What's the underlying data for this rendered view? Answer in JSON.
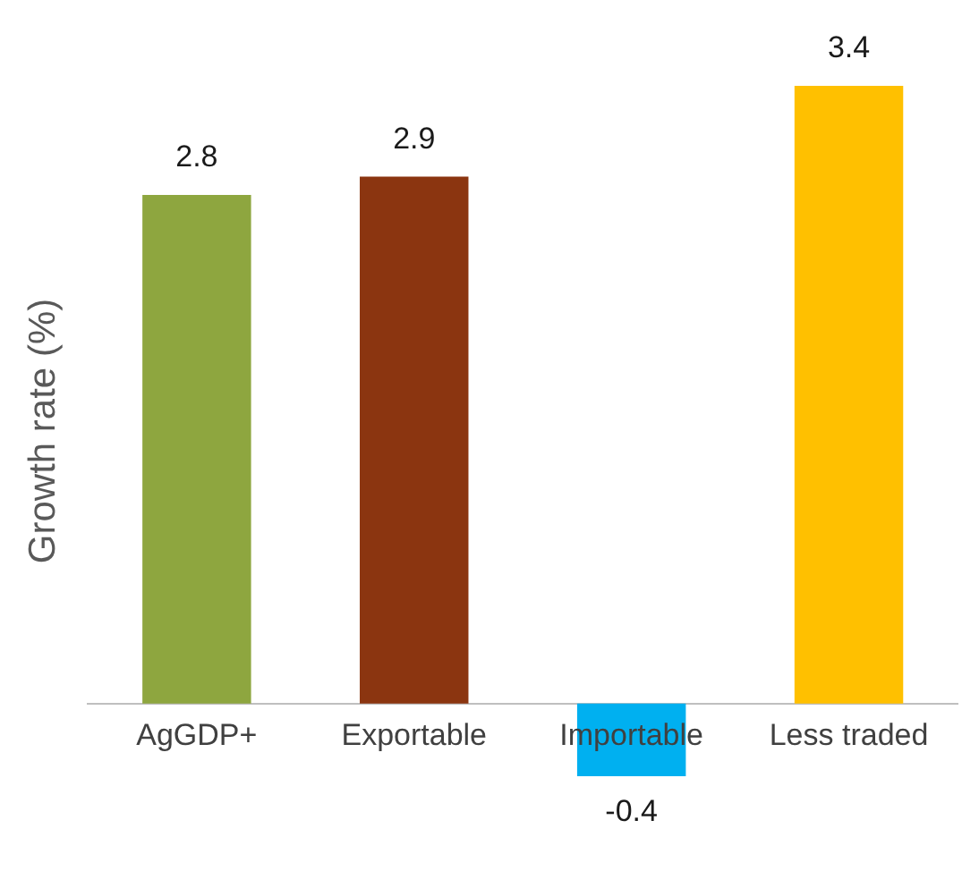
{
  "chart_data": {
    "type": "bar",
    "ylabel": "Growth rate (%)",
    "categories": [
      "AgGDP+",
      "Exportable",
      "Importable",
      "Less traded"
    ],
    "values": [
      2.8,
      2.9,
      -0.4,
      3.4
    ],
    "colors": [
      "#8ea63f",
      "#8b3510",
      "#00b0f0",
      "#ffc000"
    ],
    "data_labels": true,
    "grid": false,
    "legend": false
  }
}
